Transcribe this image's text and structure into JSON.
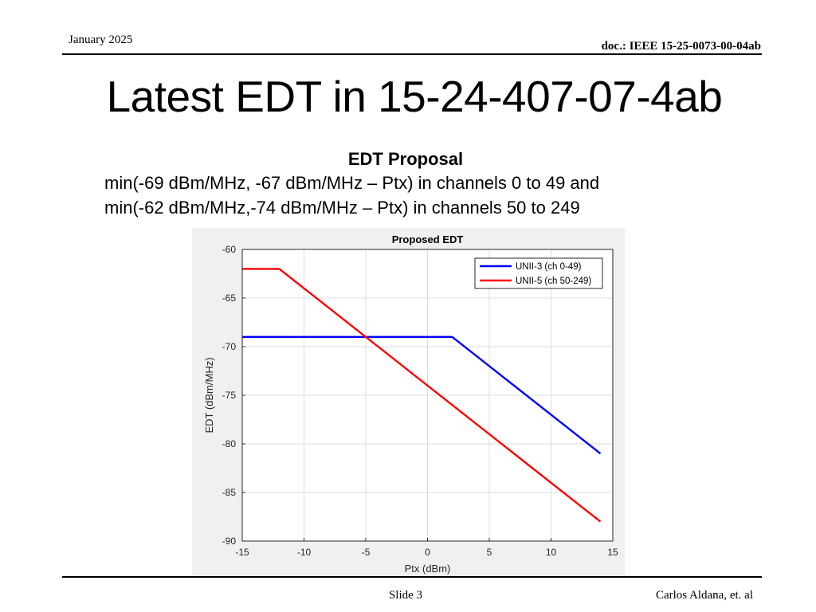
{
  "header": {
    "date": "January 2025",
    "doc_id": "doc.: IEEE 15-25-0073-00-04ab"
  },
  "slide": {
    "title": "Latest EDT in 15-24-407-07-4ab",
    "proposal_heading": "EDT Proposal",
    "proposal_line_1": "min(-69 dBm/MHz, -67 dBm/MHz – Ptx) in channels 0 to 49 and",
    "proposal_line_2": "min(-62 dBm/MHz,-74 dBm/MHz – Ptx) in channels 50 to 249"
  },
  "footer": {
    "slide_label": "Slide 3",
    "author": "Carlos Aldana, et. al"
  },
  "chart_data": {
    "type": "line",
    "title": "Proposed EDT",
    "xlabel": "Ptx (dBm)",
    "ylabel": "EDT (dBm/MHz)",
    "xlim": [
      -15,
      15
    ],
    "ylim": [
      -90,
      -60
    ],
    "xticks": [
      -15,
      -10,
      -5,
      0,
      5,
      10,
      15
    ],
    "yticks": [
      -60,
      -65,
      -70,
      -75,
      -80,
      -85,
      -90
    ],
    "grid": true,
    "legend_position": "top-right",
    "series": [
      {
        "name": "UNII-3 (ch 0-49)",
        "color": "#0000ff",
        "x": [
          -15,
          2,
          14
        ],
        "y": [
          -69,
          -69,
          -81
        ]
      },
      {
        "name": "UNII-5 (ch 50-249)",
        "color": "#ff0000",
        "x": [
          -15,
          -12,
          14
        ],
        "y": [
          -62,
          -62,
          -88
        ]
      }
    ]
  }
}
